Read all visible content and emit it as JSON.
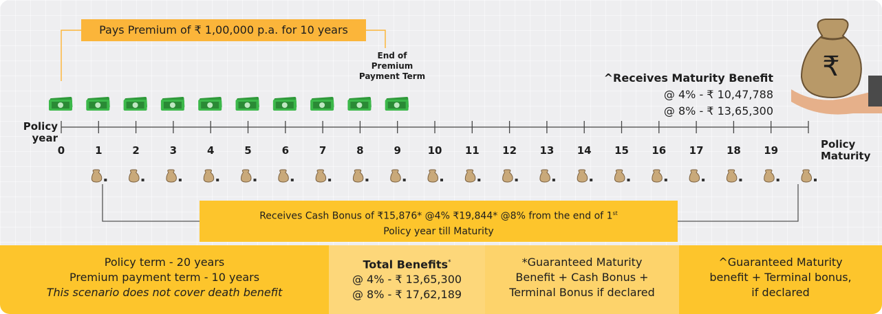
{
  "premium_banner": "Pays Premium of ₹ 1,00,000 p.a. for 10 years",
  "premium_term_end": [
    "End of",
    "Premium",
    "Payment Term"
  ],
  "axis": {
    "label": [
      "Policy",
      "year"
    ],
    "years": [
      0,
      1,
      2,
      3,
      4,
      5,
      6,
      7,
      8,
      9,
      10,
      11,
      12,
      13,
      14,
      15,
      16,
      17,
      18,
      19
    ],
    "end_label": [
      "Policy",
      "Maturity"
    ]
  },
  "maturity_benefit": {
    "title": "^Receives Maturity Benefit",
    "lines": [
      "@ 4% - ₹ 10,47,788",
      "@ 8% - ₹ 13,65,300"
    ]
  },
  "cash_bonus": {
    "line1": "Receives Cash Bonus of ₹15,876* @4% ₹19,844* @8% from the end of 1",
    "superscript": "st",
    "line2": "Policy year till Maturity"
  },
  "footer": {
    "terms": {
      "lines": [
        "Policy term - 20 years",
        "Premium payment term - 10 years"
      ],
      "note": "This scenario does not cover death benefit"
    },
    "total_benefits": {
      "title": "Total Benefits",
      "title_mark": "*",
      "lines": [
        "@ 4% - ₹ 13,65,300",
        "@ 8% - ₹ 17,62,189"
      ]
    },
    "guaranteed_note": [
      "*Guaranteed Maturity",
      "Benefit + Cash Bonus +",
      "Terminal Bonus if declared"
    ],
    "maturity_note": [
      "^Guaranteed Maturity",
      "benefit + Terminal bonus,",
      "if declared"
    ]
  }
}
